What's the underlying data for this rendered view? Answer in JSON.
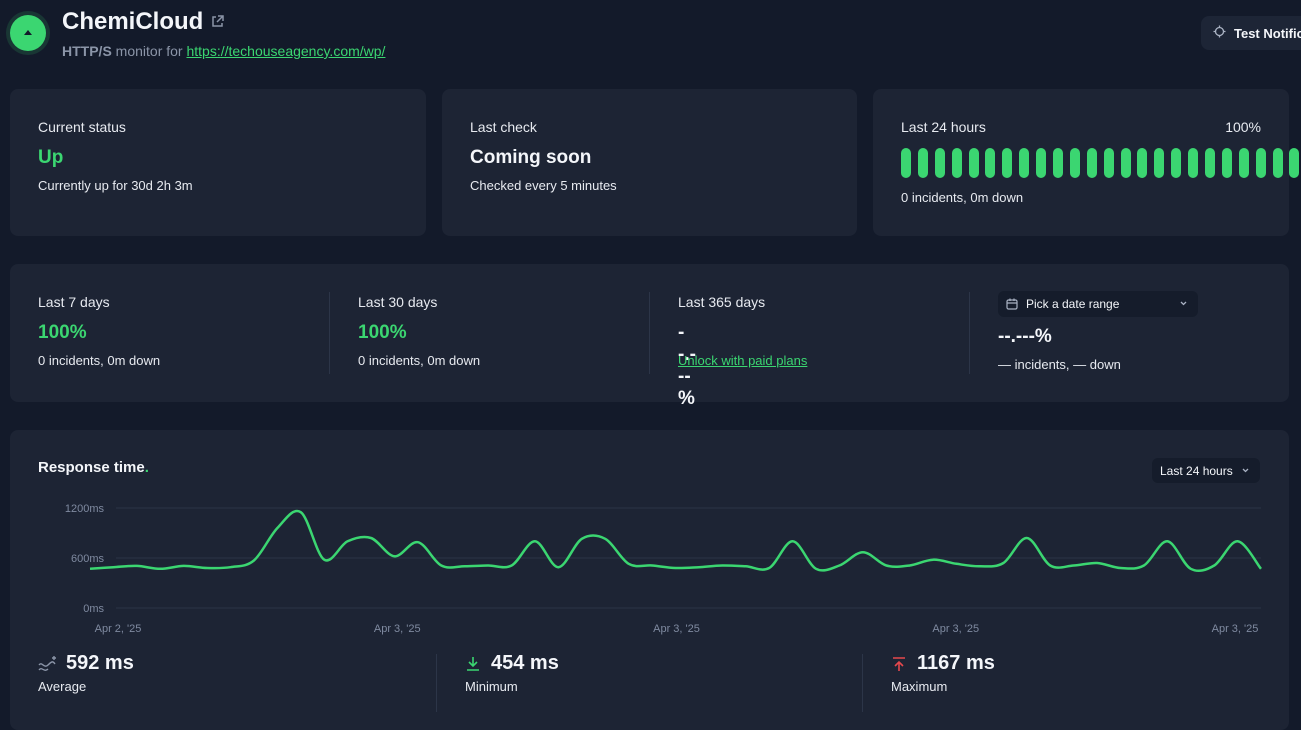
{
  "header": {
    "title": "ChemiCloud",
    "protocol": "HTTP/S",
    "monitor_for": " monitor for ",
    "url": "https://techouseagency.com/wp/",
    "test_button": "Test Notifications"
  },
  "status_cards": {
    "current": {
      "label": "Current status",
      "value": "Up",
      "detail": "Currently up for 30d 2h 3m"
    },
    "last_check": {
      "label": "Last check",
      "value": "Coming soon",
      "detail": "Checked every 5 minutes"
    },
    "last_24h": {
      "label": "Last 24 hours",
      "percent": "100%",
      "detail": "0 incidents, 0m down",
      "bar_count": 24
    }
  },
  "uptime": [
    {
      "label": "Last 7 days",
      "value": "100%",
      "detail": "0 incidents, 0m down"
    },
    {
      "label": "Last 30 days",
      "value": "100%",
      "detail": "0 incidents, 0m down"
    },
    {
      "label": "Last 365 days",
      "value": "--.---%",
      "link": "Unlock with paid plans"
    }
  ],
  "custom_range": {
    "picker_label": "Pick a date range",
    "value": "--.---%",
    "detail": "— incidents, — down"
  },
  "response": {
    "title": "Response time",
    "title_dot": ".",
    "range_label": "Last 24 hours",
    "stats": {
      "average": {
        "value": "592 ms",
        "label": "Average"
      },
      "minimum": {
        "value": "454 ms",
        "label": "Minimum"
      },
      "maximum": {
        "value": "1167 ms",
        "label": "Maximum"
      }
    }
  },
  "colors": {
    "accent": "#3bd671",
    "danger": "#e5484d",
    "background": "#131a2a",
    "card": "#1d2434"
  },
  "chart_data": {
    "type": "line",
    "y_ticks": [
      "1200ms",
      "600ms",
      "0ms"
    ],
    "ylim": [
      0,
      1200
    ],
    "x_ticks": [
      "Apr 2, '25",
      "Apr 3, '25",
      "Apr 3, '25",
      "Apr 3, '25",
      "Apr 3, '25"
    ],
    "grid": true,
    "series": [
      {
        "values": [
          470,
          490,
          505,
          470,
          505,
          480,
          490,
          570,
          960,
          1150,
          580,
          800,
          840,
          620,
          790,
          510,
          500,
          510,
          510,
          800,
          490,
          830,
          830,
          530,
          510,
          480,
          490,
          510,
          500,
          480,
          800,
          470,
          510,
          670,
          510,
          510,
          580,
          530,
          500,
          540,
          840,
          510,
          510,
          540,
          480,
          510,
          800,
          470,
          510,
          800,
          470
        ]
      }
    ]
  }
}
